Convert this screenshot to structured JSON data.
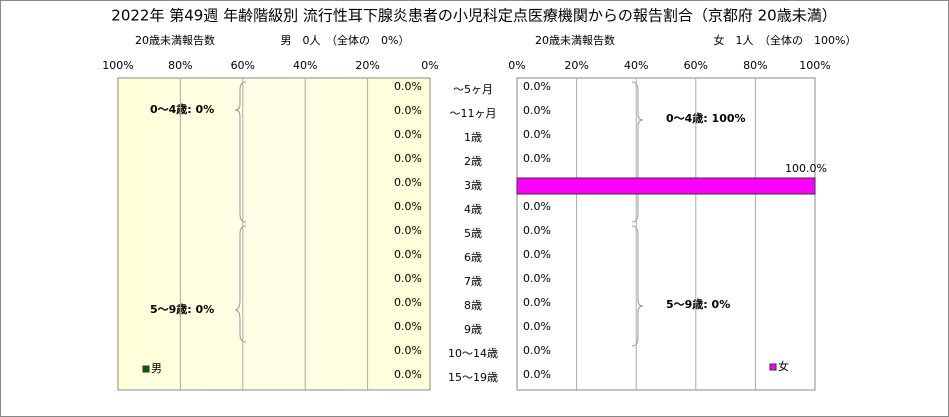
{
  "chart_data": {
    "type": "butterfly-bar",
    "title": "2022年 第49週 年齢階級別 流行性耳下腺炎患者の小児科定点医療機関からの報告割合（京都府 20歳未満）",
    "left_subtitle": "20歳未満報告数",
    "left_header": "男　0人　（全体の　0%）",
    "right_subtitle": "20歳未満報告数",
    "right_header": "女　1人　（全体の　100%）",
    "categories": [
      "～5ヶ月",
      "～11ヶ月",
      "1歳",
      "2歳",
      "3歳",
      "4歳",
      "5歳",
      "6歳",
      "7歳",
      "8歳",
      "9歳",
      "10～14歳",
      "15～19歳"
    ],
    "series": [
      {
        "name": "男",
        "color": "#006400",
        "values": [
          0,
          0,
          0,
          0,
          0,
          0,
          0,
          0,
          0,
          0,
          0,
          0,
          0
        ],
        "value_labels": [
          "0.0%",
          "0.0%",
          "0.0%",
          "0.0%",
          "0.0%",
          "0.0%",
          "0.0%",
          "0.0%",
          "0.0%",
          "0.0%",
          "0.0%",
          "0.0%",
          "0.0%"
        ]
      },
      {
        "name": "女",
        "color": "#ff00ff",
        "values": [
          0,
          0,
          0,
          0,
          100,
          0,
          0,
          0,
          0,
          0,
          0,
          0,
          0
        ],
        "value_labels": [
          "0.0%",
          "0.0%",
          "0.0%",
          "0.0%",
          "100.0%",
          "0.0%",
          "0.0%",
          "0.0%",
          "0.0%",
          "0.0%",
          "0.0%",
          "0.0%",
          "0.0%"
        ]
      }
    ],
    "annotations": [
      "0～4歳: 0%",
      "5～9歳: 0%",
      "0～4歳: 100%",
      "5～9歳: 0%"
    ],
    "xlim": [
      0,
      100
    ],
    "xticks": [
      {
        "value": 0,
        "label": "0%"
      },
      {
        "value": 20,
        "label": "20%"
      },
      {
        "value": 40,
        "label": "40%"
      },
      {
        "value": 60,
        "label": "60%"
      },
      {
        "value": 80,
        "label": "80%"
      },
      {
        "value": 100,
        "label": "100%"
      }
    ],
    "grid": true
  }
}
